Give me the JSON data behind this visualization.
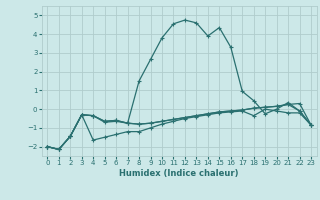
{
  "xlabel": "Humidex (Indice chaleur)",
  "xlim": [
    -0.5,
    23.5
  ],
  "ylim": [
    -2.5,
    5.5
  ],
  "yticks": [
    -2,
    -1,
    0,
    1,
    2,
    3,
    4,
    5
  ],
  "xticks": [
    0,
    1,
    2,
    3,
    4,
    5,
    6,
    7,
    8,
    9,
    10,
    11,
    12,
    13,
    14,
    15,
    16,
    17,
    18,
    19,
    20,
    21,
    22,
    23
  ],
  "bg_color": "#cce8e8",
  "grid_color": "#b0cccc",
  "line_color": "#2a7070",
  "x": [
    0,
    1,
    2,
    3,
    4,
    5,
    6,
    7,
    8,
    9,
    10,
    11,
    12,
    13,
    14,
    15,
    16,
    17,
    18,
    19,
    20,
    21,
    22,
    23
  ],
  "line1": [
    -2.0,
    -2.15,
    -1.45,
    -0.3,
    -0.35,
    -0.7,
    -0.65,
    -0.75,
    1.5,
    2.65,
    3.8,
    4.55,
    4.75,
    4.6,
    3.9,
    4.35,
    3.3,
    0.95,
    0.45,
    -0.25,
    0.0,
    0.35,
    -0.1,
    -0.85
  ],
  "line2": [
    -2.0,
    -2.15,
    -1.45,
    -0.3,
    -0.35,
    -0.65,
    -0.6,
    -0.75,
    -0.8,
    -0.75,
    -0.65,
    -0.55,
    -0.45,
    -0.35,
    -0.25,
    -0.15,
    -0.1,
    -0.05,
    0.05,
    0.1,
    0.15,
    0.25,
    0.3,
    -0.85
  ],
  "line3": [
    -2.0,
    -2.15,
    -1.45,
    -0.3,
    -0.35,
    -0.65,
    -0.6,
    -0.75,
    -0.8,
    -0.75,
    -0.65,
    -0.55,
    -0.45,
    -0.35,
    -0.25,
    -0.15,
    -0.1,
    -0.05,
    0.05,
    0.1,
    0.15,
    0.25,
    -0.1,
    -0.85
  ],
  "line4": [
    -2.0,
    -2.15,
    -1.45,
    -0.3,
    -1.65,
    -1.5,
    -1.35,
    -1.2,
    -1.2,
    -1.0,
    -0.8,
    -0.65,
    -0.5,
    -0.4,
    -0.3,
    -0.2,
    -0.15,
    -0.1,
    -0.35,
    0.0,
    -0.1,
    -0.2,
    -0.2,
    -0.85
  ]
}
